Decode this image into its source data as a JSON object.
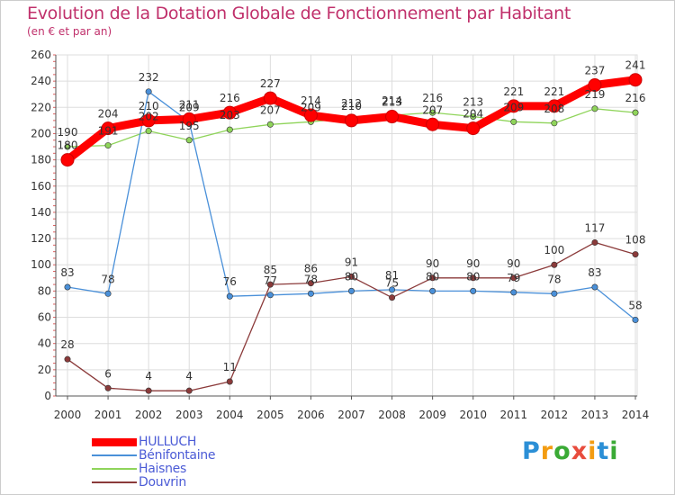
{
  "title": "Evolution de la Dotation Globale de Fonctionnement par Habitant",
  "subtitle": "(en € et par an)",
  "logo": "Proxiti",
  "chart_data": {
    "type": "line",
    "title": "Evolution de la Dotation Globale de Fonctionnement par Habitant",
    "subtitle": "(en € et par an)",
    "xlabel": "",
    "ylabel": "",
    "ylim": [
      0,
      260
    ],
    "yticks": [
      0,
      20,
      40,
      60,
      80,
      100,
      120,
      140,
      160,
      180,
      200,
      220,
      240,
      260
    ],
    "grid": true,
    "legend": "bottom-left",
    "x": [
      "2000",
      "2001",
      "2002",
      "2003",
      "2004",
      "2005",
      "2006",
      "2007",
      "2008",
      "2009",
      "2010",
      "2011",
      "2012",
      "2013",
      "2014"
    ],
    "series": [
      {
        "name": "HULLUCH",
        "color": "#ff0000",
        "values": [
          180,
          204,
          210,
          211,
          216,
          227,
          214,
          210,
          213,
          207,
          204,
          221,
          221,
          237,
          241
        ],
        "labels": [
          "180",
          "204",
          "210",
          "211",
          "216",
          "227",
          "214",
          "210",
          "213",
          "207",
          "204",
          "221",
          "221",
          "237",
          "241"
        ]
      },
      {
        "name": "Bénifontaine",
        "color": "#4a90d9",
        "values": [
          83,
          78,
          232,
          209,
          76,
          77,
          78,
          80,
          81,
          80,
          80,
          79,
          78,
          83,
          58
        ],
        "labels": [
          "83",
          "78",
          "232",
          "209",
          "76",
          "77",
          "78",
          "80",
          "81",
          "80",
          "80",
          "79",
          "78",
          "83",
          "58"
        ]
      },
      {
        "name": "Haisnes",
        "color": "#8fd45a",
        "values": [
          190,
          191,
          202,
          195,
          203,
          207,
          209,
          212,
          214,
          216,
          213,
          209,
          208,
          219,
          216
        ],
        "labels": [
          "190",
          "191",
          "202",
          "195",
          "203",
          "207",
          "209",
          "212",
          "214",
          "216",
          "213",
          "209",
          "208",
          "219",
          "216"
        ]
      },
      {
        "name": "Douvrin",
        "color": "#8b3a3a",
        "values": [
          28,
          6,
          4,
          4,
          11,
          85,
          86,
          91,
          75,
          90,
          90,
          90,
          100,
          117,
          108
        ],
        "labels": [
          "28",
          "6",
          "4",
          "4",
          "11",
          "85",
          "86",
          "91",
          "75",
          "90",
          "90",
          "90",
          "100",
          "117",
          "108"
        ]
      }
    ]
  }
}
